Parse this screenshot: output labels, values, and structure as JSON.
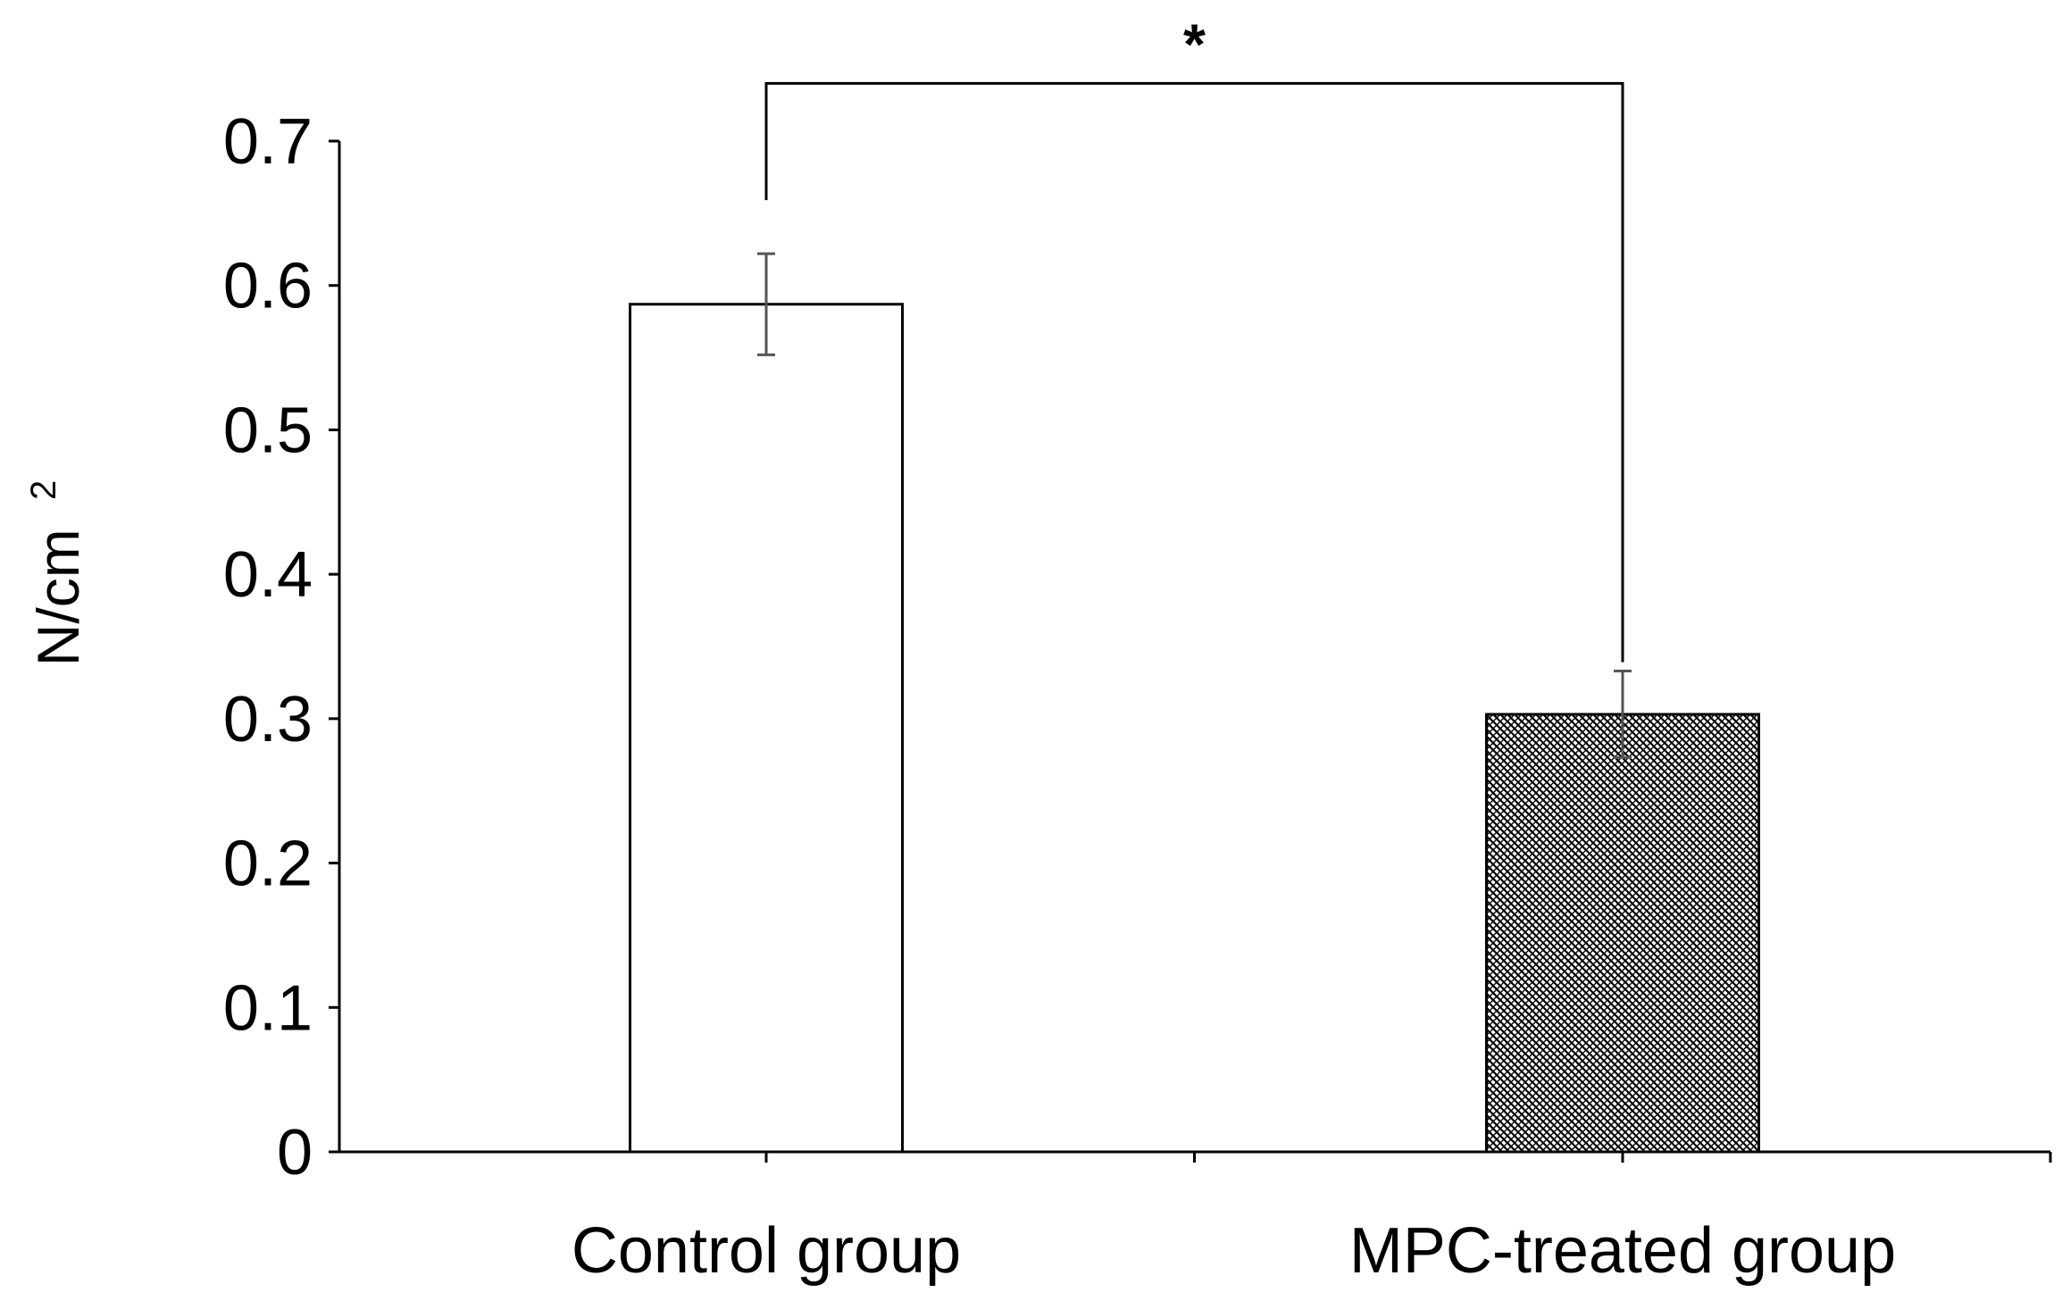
{
  "chart_data": {
    "type": "bar",
    "title": "",
    "xlabel": "",
    "ylabel": "N/cm",
    "ylabel_superscript": "2",
    "categories": [
      "Control group",
      "MPC-treated group"
    ],
    "values": [
      0.587,
      0.303
    ],
    "error": [
      0.035,
      0.03
    ],
    "ylim": [
      0,
      0.7
    ],
    "yticks": [
      0,
      0.1,
      0.2,
      0.3,
      0.4,
      0.5,
      0.6,
      0.7
    ],
    "ytick_labels": [
      "0",
      "0.1",
      "0.2",
      "0.3",
      "0.4",
      "0.5",
      "0.6",
      "0.7"
    ],
    "bar_fills": [
      "white",
      "crosshatch"
    ],
    "significance": {
      "between": [
        0,
        1
      ],
      "label": "*",
      "y": 0.74
    },
    "grid": false,
    "legend": "none"
  }
}
